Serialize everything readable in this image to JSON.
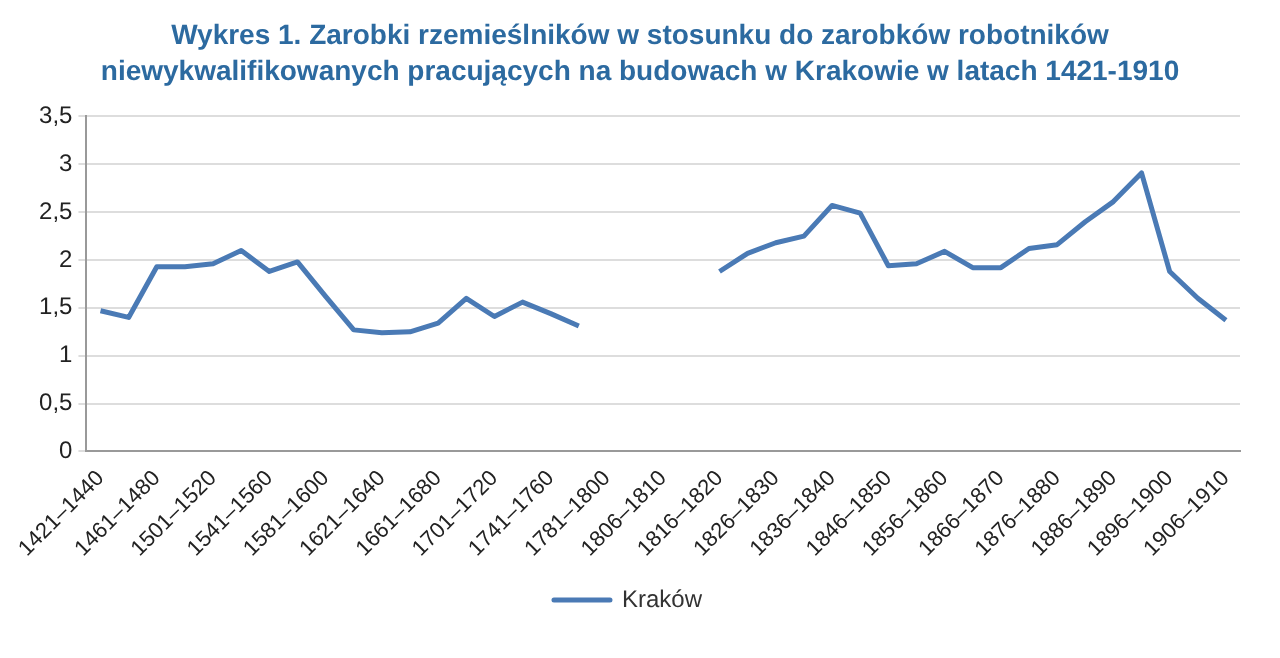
{
  "chart_data": {
    "type": "line",
    "title": "Wykres 1. Zarobki rzemieślników w stosunku do zarobków robotników niewykwalifikowanych pracujących na budowach w Krakowie w latach 1421-1910",
    "categories": [
      "1421–1440",
      null,
      "1461–1480",
      null,
      "1501–1520",
      null,
      "1541–1560",
      null,
      "1581–1600",
      null,
      "1621–1640",
      null,
      "1661–1680",
      null,
      "1701–1720",
      null,
      "1741–1760",
      null,
      "1781–1800",
      null,
      "1806–1810",
      null,
      "1816–1820",
      null,
      "1826–1830",
      null,
      "1836–1840",
      null,
      "1846–1850",
      null,
      "1856–1860",
      null,
      "1866–1870",
      null,
      "1876–1880",
      null,
      "1886–1890",
      null,
      "1896–1900",
      null,
      "1906–1910"
    ],
    "series": [
      {
        "name": "Kraków",
        "color": "#4a7ab5",
        "values": [
          1.47,
          1.4,
          1.93,
          1.93,
          1.96,
          2.1,
          1.88,
          1.98,
          1.62,
          1.27,
          1.24,
          1.25,
          1.34,
          1.6,
          1.41,
          1.56,
          1.44,
          1.31,
          null,
          null,
          null,
          null,
          1.88,
          2.07,
          2.18,
          2.25,
          2.57,
          2.49,
          1.94,
          1.96,
          2.09,
          1.92,
          1.92,
          2.12,
          2.16,
          2.4,
          2.61,
          2.91,
          1.88,
          1.6,
          1.37
        ]
      }
    ],
    "ylim": [
      0,
      3.5
    ],
    "yticks": [
      {
        "value": 0,
        "label": "0"
      },
      {
        "value": 0.5,
        "label": "0,5"
      },
      {
        "value": 1,
        "label": "1"
      },
      {
        "value": 1.5,
        "label": "1,5"
      },
      {
        "value": 2,
        "label": "2"
      },
      {
        "value": 2.5,
        "label": "2,5"
      },
      {
        "value": 3,
        "label": "3"
      },
      {
        "value": 3.5,
        "label": "3,5"
      }
    ],
    "grid": "y",
    "legend": "bottom",
    "marker": "none",
    "line_style": "solid"
  }
}
